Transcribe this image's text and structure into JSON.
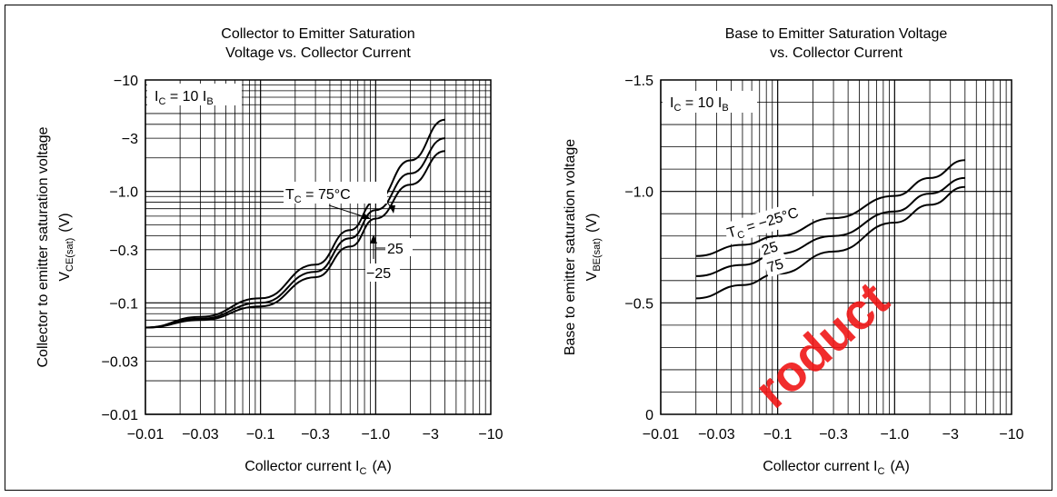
{
  "charts": [
    {
      "title_line1": "Collector to Emitter Saturation",
      "title_line2": "Voltage vs. Collector Current",
      "ylabel_line1": "Collector to emitter saturation voltage",
      "ylabel_sym_main": "V",
      "ylabel_sym_sub": "CE(sat)",
      "ylabel_unit": "(V)",
      "xlabel_main": "Collector current  I",
      "xlabel_sub": "C",
      "xlabel_unit": "(A)",
      "condition_main": "I",
      "condition_sub1": "C",
      "condition_mid": " = 10 I",
      "condition_sub2": "B",
      "xticks": [
        "−0.01",
        "−0.03",
        "−0.1",
        "−0.3",
        "−1.0",
        "−3",
        "−10"
      ],
      "yticks": [
        "−10",
        "−3",
        "−1.0",
        "−0.3",
        "−0.1",
        "−0.03",
        "−0.01"
      ],
      "curve_labels": {
        "t75_main": "T",
        "t75_sub": "C",
        "t75_rest": " = 75°C",
        "t25": "25",
        "tm25": "−25"
      }
    },
    {
      "title_line1": "Base to Emitter Saturation Voltage",
      "title_line2": "vs. Collector Current",
      "ylabel_line1": "Base to emitter saturation voltage",
      "ylabel_sym_main": "V",
      "ylabel_sym_sub": "BE(sat)",
      "ylabel_unit": "(V)",
      "xlabel_main": "Collector current  I",
      "xlabel_sub": "C",
      "xlabel_unit": "(A)",
      "condition_main": "I",
      "condition_sub1": "C",
      "condition_mid": " = 10 I",
      "condition_sub2": "B",
      "xticks": [
        "−0.01",
        "−0.03",
        "−0.1",
        "−0.3",
        "−1.0",
        "−3",
        "−10"
      ],
      "yticks": [
        "−1.5",
        "−1.0",
        "−0.5",
        "0"
      ],
      "curve_labels": {
        "tm25_main": "T",
        "tm25_sub": "C",
        "tm25_rest": " = −25°C",
        "t25": "25",
        "t75": "75"
      }
    }
  ],
  "watermark": "roduct",
  "chart_data": [
    {
      "type": "line",
      "title": "Collector to Emitter Saturation Voltage vs. Collector Current",
      "xlabel": "Collector current IC (A)",
      "ylabel": "Collector to emitter saturation voltage VCE(sat) (V)",
      "xscale": "log",
      "yscale": "log",
      "xlim": [
        -0.01,
        -10
      ],
      "ylim": [
        -0.01,
        -10
      ],
      "grid": true,
      "series": [
        {
          "name": "TC = 75°C",
          "x": [
            -0.01,
            -0.03,
            -0.1,
            -0.3,
            -0.6,
            -1.0,
            -2.0,
            -4.0
          ],
          "y": [
            -0.06,
            -0.075,
            -0.11,
            -0.22,
            -0.45,
            -0.82,
            -1.9,
            -4.4
          ]
        },
        {
          "name": "25",
          "x": [
            -0.01,
            -0.03,
            -0.1,
            -0.3,
            -0.6,
            -1.0,
            -2.0,
            -4.0
          ],
          "y": [
            -0.06,
            -0.072,
            -0.1,
            -0.19,
            -0.38,
            -0.68,
            -1.45,
            -3.0
          ]
        },
        {
          "name": "−25",
          "x": [
            -0.01,
            -0.03,
            -0.1,
            -0.3,
            -0.6,
            -1.0,
            -2.0,
            -4.0
          ],
          "y": [
            -0.06,
            -0.07,
            -0.093,
            -0.17,
            -0.32,
            -0.57,
            -1.15,
            -2.3
          ]
        }
      ]
    },
    {
      "type": "line",
      "title": "Base to Emitter Saturation Voltage vs. Collector Current",
      "xlabel": "Collector current IC (A)",
      "ylabel": "Base to emitter saturation voltage VBE(sat) (V)",
      "xscale": "log",
      "yscale": "linear",
      "xlim": [
        -0.01,
        -10
      ],
      "ylim": [
        0,
        -1.5
      ],
      "grid": true,
      "series": [
        {
          "name": "TC = −25°C",
          "x": [
            -0.02,
            -0.05,
            -0.1,
            -0.3,
            -1.0,
            -2.0,
            -4.0
          ],
          "y": [
            -0.71,
            -0.76,
            -0.8,
            -0.88,
            -0.98,
            -1.06,
            -1.14
          ]
        },
        {
          "name": "25",
          "x": [
            -0.02,
            -0.05,
            -0.1,
            -0.3,
            -1.0,
            -2.0,
            -4.0
          ],
          "y": [
            -0.62,
            -0.67,
            -0.72,
            -0.8,
            -0.91,
            -0.99,
            -1.06
          ]
        },
        {
          "name": "75",
          "x": [
            -0.02,
            -0.05,
            -0.1,
            -0.3,
            -1.0,
            -2.0,
            -4.0
          ],
          "y": [
            -0.52,
            -0.58,
            -0.63,
            -0.73,
            -0.86,
            -0.94,
            -1.02
          ]
        }
      ]
    }
  ]
}
